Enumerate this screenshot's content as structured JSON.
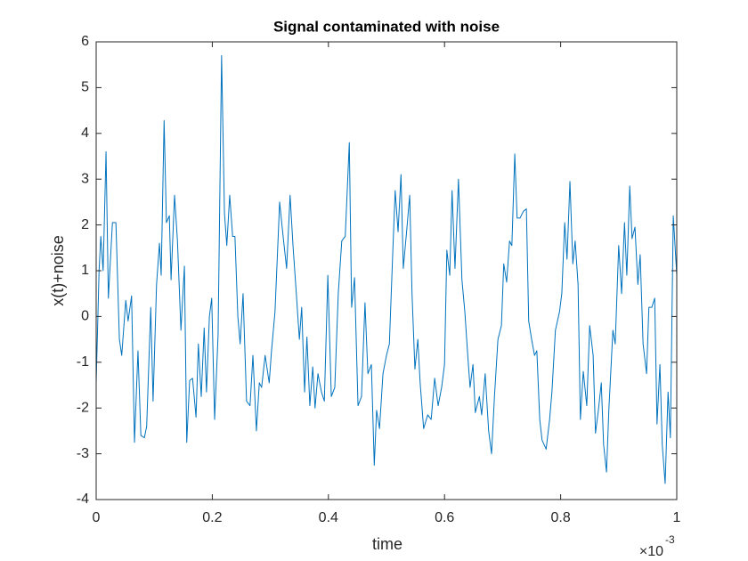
{
  "chart_data": {
    "type": "line",
    "title": "Signal contaminated with noise",
    "x_label": "time",
    "y_label": "x(t)+noise",
    "x_multiplier": {
      "base": "×10",
      "exponent": "-3"
    },
    "color": "#0072bd",
    "grid": false,
    "box": true,
    "xlim": [
      0,
      1
    ],
    "ylim": [
      -4,
      6
    ],
    "xticks": [
      0,
      0.2,
      0.4,
      0.6,
      0.8,
      1
    ],
    "yticks": [
      -4,
      -3,
      -2,
      -1,
      0,
      1,
      2,
      3,
      4,
      5,
      6
    ],
    "x": [
      0,
      0.005,
      0.008,
      0.012,
      0.017,
      0.021,
      0.028,
      0.034,
      0.04,
      0.044,
      0.051,
      0.055,
      0.061,
      0.066,
      0.072,
      0.077,
      0.083,
      0.087,
      0.094,
      0.098,
      0.104,
      0.109,
      0.112,
      0.117,
      0.121,
      0.126,
      0.129,
      0.135,
      0.14,
      0.146,
      0.152,
      0.156,
      0.161,
      0.166,
      0.172,
      0.176,
      0.181,
      0.186,
      0.19,
      0.195,
      0.199,
      0.204,
      0.21,
      0.216,
      0.221,
      0.225,
      0.23,
      0.235,
      0.239,
      0.244,
      0.248,
      0.253,
      0.259,
      0.265,
      0.27,
      0.276,
      0.281,
      0.285,
      0.291,
      0.298,
      0.302,
      0.308,
      0.316,
      0.322,
      0.328,
      0.334,
      0.339,
      0.345,
      0.35,
      0.354,
      0.359,
      0.363,
      0.368,
      0.373,
      0.377,
      0.382,
      0.388,
      0.393,
      0.399,
      0.405,
      0.411,
      0.417,
      0.423,
      0.429,
      0.436,
      0.44,
      0.445,
      0.451,
      0.457,
      0.463,
      0.468,
      0.474,
      0.479,
      0.483,
      0.488,
      0.494,
      0.5,
      0.505,
      0.511,
      0.515,
      0.52,
      0.525,
      0.529,
      0.535,
      0.54,
      0.544,
      0.549,
      0.554,
      0.558,
      0.564,
      0.571,
      0.577,
      0.583,
      0.589,
      0.595,
      0.6,
      0.604,
      0.609,
      0.613,
      0.618,
      0.624,
      0.63,
      0.635,
      0.64,
      0.644,
      0.649,
      0.653,
      0.66,
      0.664,
      0.67,
      0.676,
      0.681,
      0.686,
      0.692,
      0.698,
      0.702,
      0.707,
      0.712,
      0.716,
      0.721,
      0.725,
      0.73,
      0.736,
      0.741,
      0.745,
      0.75,
      0.755,
      0.759,
      0.764,
      0.768,
      0.775,
      0.781,
      0.785,
      0.791,
      0.798,
      0.802,
      0.807,
      0.811,
      0.816,
      0.821,
      0.825,
      0.83,
      0.834,
      0.839,
      0.845,
      0.85,
      0.856,
      0.86,
      0.865,
      0.87,
      0.874,
      0.879,
      0.883,
      0.89,
      0.894,
      0.9,
      0.905,
      0.91,
      0.914,
      0.919,
      0.923,
      0.928,
      0.933,
      0.937,
      0.942,
      0.948,
      0.952,
      0.957,
      0.962,
      0.966,
      0.971,
      0.975,
      0.98,
      0.985,
      0.989,
      0.994,
      1
    ],
    "values": [
      -1.45,
      1.0,
      1.75,
      1.0,
      3.6,
      0.4,
      2.05,
      2.05,
      -0.5,
      -0.85,
      0.35,
      -0.1,
      0.45,
      -2.75,
      -0.75,
      -2.6,
      -2.65,
      -2.4,
      0.2,
      -1.85,
      0.7,
      1.6,
      0.9,
      4.28,
      2.05,
      2.2,
      0.8,
      2.65,
      1.65,
      -0.3,
      1.1,
      -2.75,
      -1.4,
      -1.35,
      -2.2,
      -0.6,
      -1.75,
      -0.25,
      -1.65,
      0,
      0.4,
      -2.25,
      -0.4,
      5.7,
      2.25,
      1.55,
      2.65,
      1.75,
      1.75,
      0,
      -0.6,
      0.5,
      -1.85,
      -1.95,
      -0.85,
      -2.5,
      -1.45,
      -1.55,
      -0.85,
      -1.45,
      -0.75,
      0.1,
      2.5,
      1.75,
      1.05,
      2.65,
      1.55,
      0.45,
      -0.5,
      0.2,
      -1.65,
      -0.45,
      -1.95,
      -1.1,
      -2.0,
      -1.25,
      -1.65,
      -1.85,
      0.9,
      -1.75,
      -1.55,
      0.5,
      1.65,
      1.75,
      3.8,
      0.2,
      0.85,
      -1.95,
      -1.75,
      0.3,
      -1.25,
      -1.05,
      -3.25,
      -2.05,
      -2.45,
      -1.25,
      -0.85,
      -0.6,
      1.45,
      2.75,
      1.85,
      3.1,
      1.05,
      1.9,
      2.65,
      0.5,
      -1.15,
      -0.5,
      -1.45,
      -2.45,
      -2.15,
      -2.25,
      -1.35,
      -1.95,
      -1.55,
      -1.05,
      1.45,
      0.9,
      2.75,
      1.05,
      3.0,
      0.8,
      0.1,
      -0.85,
      -1.55,
      -1.05,
      -2.1,
      -1.75,
      -2.15,
      -1.25,
      -2.5,
      -3.0,
      -1.75,
      -0.5,
      -0.2,
      1.15,
      0.75,
      1.65,
      1.55,
      3.55,
      2.15,
      2.15,
      2.3,
      2.35,
      -0.1,
      -0.5,
      -0.85,
      -0.75,
      -2.25,
      -2.7,
      -2.9,
      -2.25,
      -1.65,
      -0.3,
      0.1,
      0.5,
      2.05,
      1.25,
      2.95,
      1.15,
      1.65,
      0.7,
      -2.25,
      -1.2,
      -1.95,
      -0.2,
      -0.85,
      -2.55,
      -2.05,
      -1.45,
      -2.8,
      -3.4,
      -2.05,
      -0.3,
      -0.6,
      1.55,
      0.5,
      2.05,
      0.9,
      2.85,
      1.7,
      1.95,
      0.7,
      1.35,
      -0.6,
      -1.25,
      0.2,
      0.2,
      0.4,
      -2.35,
      -1.05,
      -2.8,
      -3.65,
      -1.65,
      -2.65,
      2.2,
      0.9
    ]
  }
}
